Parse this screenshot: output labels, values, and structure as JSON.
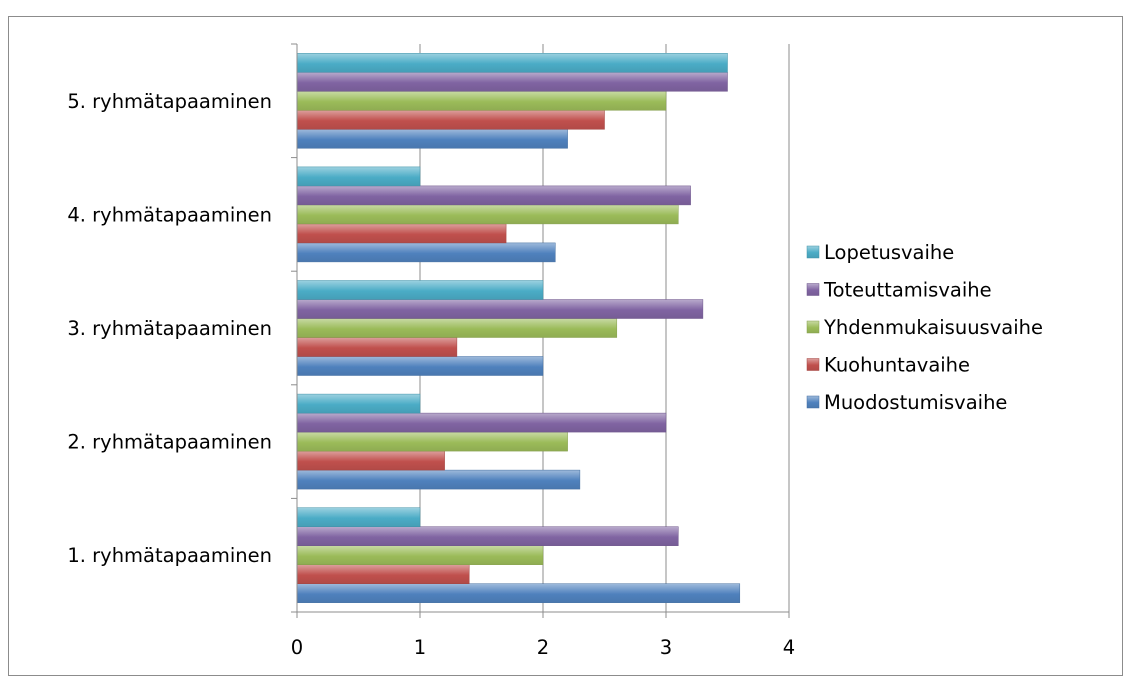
{
  "chart_data": {
    "type": "bar",
    "orientation": "horizontal",
    "categories": [
      "1. ryhmätapaaminen",
      "2. ryhmätapaaminen",
      "3. ryhmätapaaminen",
      "4. ryhmätapaaminen",
      "5. ryhmätapaaminen"
    ],
    "series": [
      {
        "name": "Muodostumisvaihe",
        "color": "#4f81bd",
        "values": [
          3.6,
          2.3,
          2.0,
          2.1,
          2.2
        ]
      },
      {
        "name": "Kuohuntavaihe",
        "color": "#c0504d",
        "values": [
          1.4,
          1.2,
          1.3,
          1.7,
          2.5
        ]
      },
      {
        "name": "Yhdenmukaisuusvaihe",
        "color": "#9bbb59",
        "values": [
          2.0,
          2.2,
          2.6,
          3.1,
          3.0
        ]
      },
      {
        "name": "Toteuttamisvaihe",
        "color": "#8064a2",
        "values": [
          3.1,
          3.0,
          3.3,
          3.2,
          3.5
        ]
      },
      {
        "name": "Lopetusvaihe",
        "color": "#4bacc6",
        "values": [
          1.0,
          1.0,
          2.0,
          1.0,
          3.5
        ]
      }
    ],
    "xlim": [
      0,
      4
    ],
    "xticks": [
      "0",
      "1",
      "2",
      "3",
      "4"
    ],
    "grid": "vertical",
    "legend": "right",
    "title": "",
    "xlabel": "",
    "ylabel": ""
  }
}
